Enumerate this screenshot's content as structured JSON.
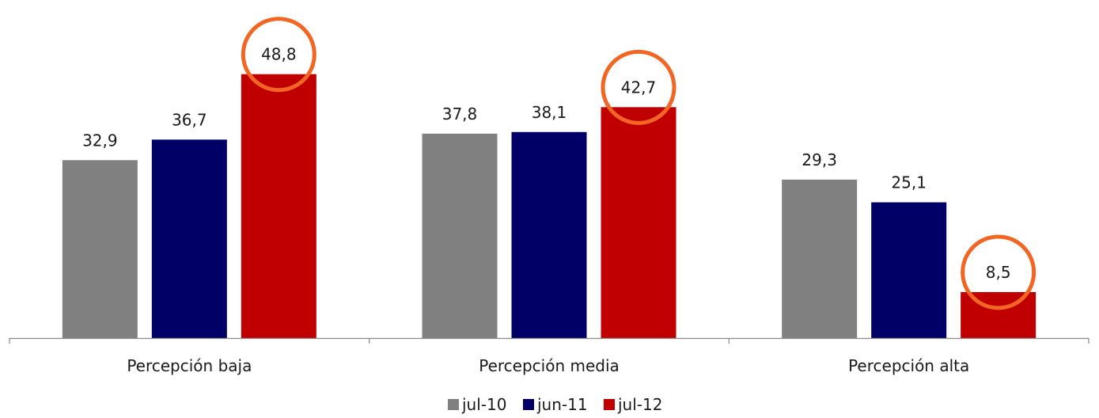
{
  "chart_data": {
    "type": "bar",
    "categories": [
      "Percepción baja",
      "Percepción media",
      "Percepción alta"
    ],
    "series": [
      {
        "name": "jul-10",
        "color": "#808080",
        "values": [
          32.9,
          37.8,
          29.3
        ],
        "labels": [
          "32,9",
          "37,8",
          "29,3"
        ]
      },
      {
        "name": "jun-11",
        "color": "#000066",
        "values": [
          36.7,
          38.1,
          25.1
        ],
        "labels": [
          "36,7",
          "38,1",
          "25,1"
        ]
      },
      {
        "name": "jul-12",
        "color": "#c00000",
        "values": [
          48.8,
          42.7,
          8.5
        ],
        "labels": [
          "48,8",
          "42,7",
          "8,5"
        ]
      }
    ],
    "highlight": {
      "series": "jul-12",
      "marker": "circle",
      "color": "#f26522"
    },
    "ylim": [
      0,
      60
    ],
    "grid": false,
    "legend_position": "bottom",
    "title": "",
    "xlabel": "",
    "ylabel": ""
  }
}
